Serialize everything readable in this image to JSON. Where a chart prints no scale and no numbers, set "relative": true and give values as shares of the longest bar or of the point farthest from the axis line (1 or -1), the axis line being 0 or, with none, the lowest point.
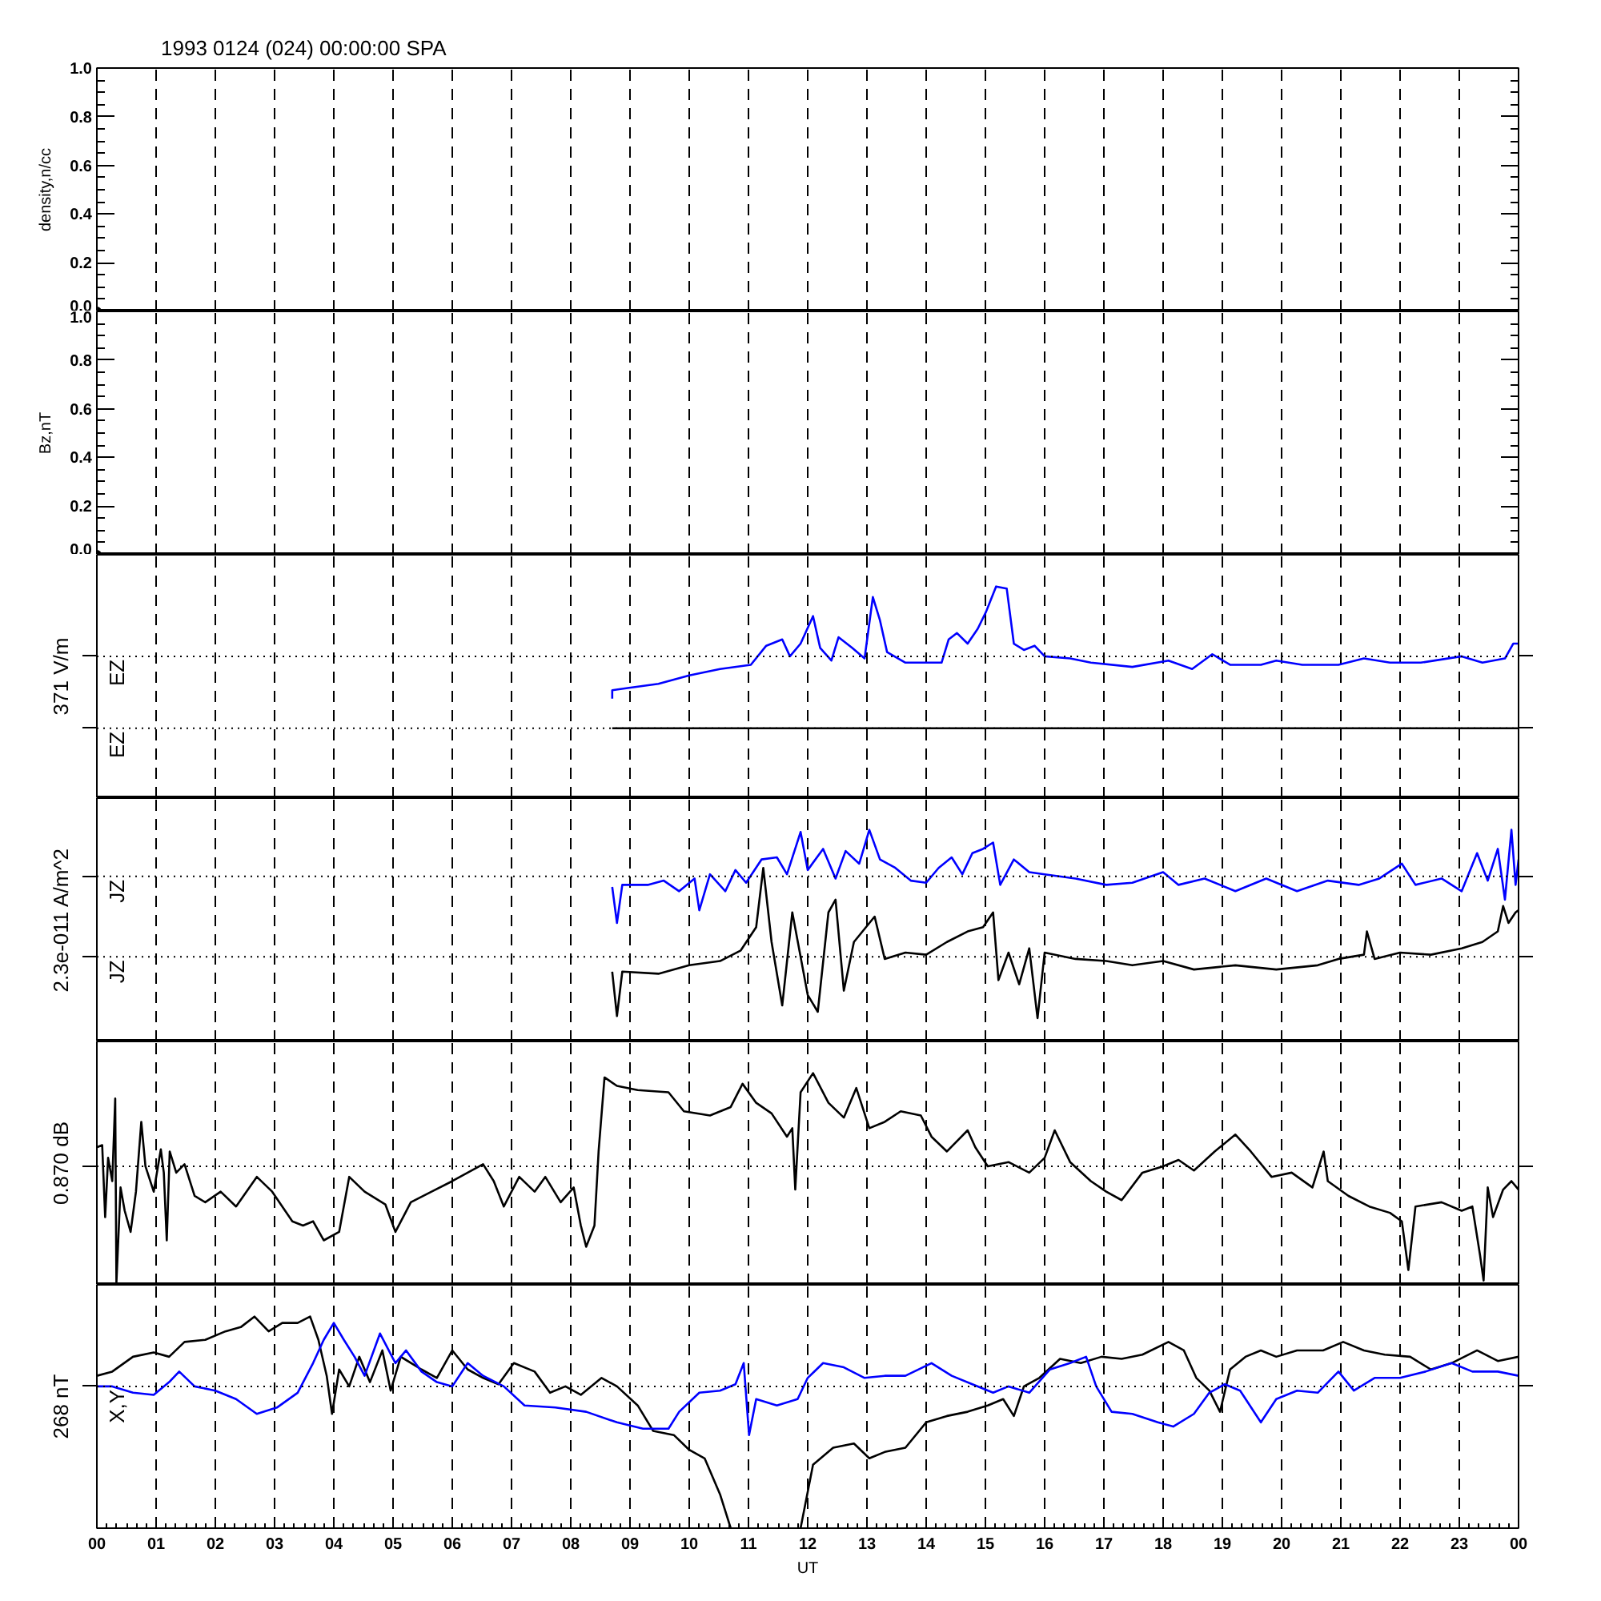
{
  "chart_data": [
    {
      "type": "scatter",
      "title": "1993 0124 (024) 00:00:00 SPA",
      "ylabel": "density,n/cc",
      "xlim": [
        0,
        24
      ],
      "xticks": [
        0,
        1,
        2,
        3,
        4,
        5,
        6,
        7,
        8,
        9,
        10,
        11,
        12,
        13,
        14,
        15,
        16,
        17,
        18,
        19,
        20,
        21,
        22,
        23,
        24
      ],
      "ylim": [
        0,
        1
      ],
      "yticks": [
        {
          "value": 0,
          "label": "0.0"
        },
        {
          "value": 0.2,
          "label": "0.2"
        },
        {
          "value": 0.4,
          "label": "0.4"
        },
        {
          "value": 0.6,
          "label": "0.6"
        },
        {
          "value": 0.8,
          "label": "0.8"
        },
        {
          "value": 1,
          "label": "1.0"
        }
      ],
      "grid": "x",
      "tick_labels": "y",
      "marker": "circle",
      "series": [
        {
          "color": "#000000",
          "x": [
            0
          ],
          "values": [
            0
          ]
        }
      ]
    },
    {
      "type": "scatter",
      "ylabel": "Bz,nT",
      "xlim": [
        0,
        24
      ],
      "xticks": [
        0,
        1,
        2,
        3,
        4,
        5,
        6,
        7,
        8,
        9,
        10,
        11,
        12,
        13,
        14,
        15,
        16,
        17,
        18,
        19,
        20,
        21,
        22,
        23,
        24
      ],
      "ylim": [
        0,
        1
      ],
      "yticks": [
        {
          "value": 0,
          "label": "0.0"
        },
        {
          "value": 0.2,
          "label": "0.2"
        },
        {
          "value": 0.4,
          "label": "0.4"
        },
        {
          "value": 0.6,
          "label": "0.6"
        },
        {
          "value": 0.8,
          "label": "0.8"
        },
        {
          "value": 1,
          "label": "1.0"
        }
      ],
      "grid": "x",
      "tick_labels": "y",
      "marker": "circle",
      "series": [
        {
          "color": "#000000",
          "x": [
            0
          ],
          "values": [
            0
          ]
        }
      ]
    },
    {
      "type": "line",
      "relative": true,
      "ylabel": "371 V/m",
      "xlim": [
        0,
        24
      ],
      "xticks": [
        0,
        1,
        2,
        3,
        4,
        5,
        6,
        7,
        8,
        9,
        10,
        11,
        12,
        13,
        14,
        15,
        16,
        17,
        18,
        19,
        20,
        21,
        22,
        23,
        24
      ],
      "grid": "x",
      "tick_labels": false,
      "ref_lines": [
        {
          "axis": "y",
          "value": 0.67,
          "label": "EZ",
          "line_style": "dotted"
        },
        {
          "axis": "y",
          "value": 0.33,
          "label": "EZ",
          "line_style": "dotted"
        }
      ],
      "series": [
        {
          "color": "#0000ff",
          "x": [
            8.7,
            8.7,
            8.96,
            9.48,
            10.0,
            10.52,
            11.04,
            11.3,
            11.57,
            11.7,
            11.88,
            12.09,
            12.21,
            12.4,
            12.52,
            12.75,
            12.96,
            13.1,
            13.22,
            13.34,
            13.65,
            14.26,
            14.38,
            14.52,
            14.7,
            14.87,
            15.01,
            15.18,
            15.36,
            15.48,
            15.65,
            15.83,
            16.0,
            16.43,
            16.78,
            17.48,
            18.09,
            18.49,
            18.83,
            19.13,
            19.65,
            19.91,
            20.35,
            20.96,
            21.39,
            21.83,
            22.35,
            23.04,
            23.39,
            23.77,
            23.91,
            24.0
          ],
          "values": [
            0.47,
            0.51,
            0.52,
            0.54,
            0.58,
            0.61,
            0.63,
            0.72,
            0.75,
            0.67,
            0.73,
            0.86,
            0.71,
            0.65,
            0.76,
            0.71,
            0.66,
            0.95,
            0.84,
            0.69,
            0.64,
            0.64,
            0.75,
            0.78,
            0.73,
            0.8,
            0.88,
            1.0,
            0.99,
            0.73,
            0.7,
            0.72,
            0.67,
            0.66,
            0.64,
            0.62,
            0.65,
            0.61,
            0.68,
            0.63,
            0.63,
            0.65,
            0.63,
            0.63,
            0.66,
            0.64,
            0.64,
            0.67,
            0.64,
            0.66,
            0.73,
            0.73
          ]
        },
        {
          "color": "#000000",
          "x": [
            8.7,
            24
          ],
          "values": [
            0.33,
            0.33
          ]
        }
      ]
    },
    {
      "type": "line",
      "relative": true,
      "ylabel": "2.3e-011 A/m^2",
      "xlim": [
        0,
        24
      ],
      "xticks": [
        0,
        1,
        2,
        3,
        4,
        5,
        6,
        7,
        8,
        9,
        10,
        11,
        12,
        13,
        14,
        15,
        16,
        17,
        18,
        19,
        20,
        21,
        22,
        23,
        24
      ],
      "grid": "x",
      "tick_labels": false,
      "ref_lines": [
        {
          "axis": "y",
          "value": 0.78,
          "label": "JZ",
          "line_style": "dotted"
        },
        {
          "axis": "y",
          "value": 0.4,
          "label": "JZ",
          "line_style": "dotted"
        }
      ],
      "series": [
        {
          "color": "#0000ff",
          "x": [
            8.7,
            8.78,
            8.87,
            9.3,
            9.57,
            9.83,
            10.09,
            10.17,
            10.35,
            10.61,
            10.78,
            10.96,
            11.22,
            11.48,
            11.65,
            11.88,
            12.0,
            12.26,
            12.47,
            12.64,
            12.87,
            13.04,
            13.22,
            13.48,
            13.74,
            14.0,
            14.21,
            14.43,
            14.61,
            14.78,
            14.96,
            15.13,
            15.25,
            15.48,
            15.74,
            16.0,
            16.52,
            17.04,
            17.48,
            18.0,
            18.26,
            18.7,
            19.22,
            19.74,
            20.26,
            20.78,
            21.3,
            21.65,
            22.03,
            22.26,
            22.7,
            23.04,
            23.3,
            23.48,
            23.65,
            23.77,
            23.88,
            23.95,
            24.0
          ],
          "values": [
            0.73,
            0.56,
            0.74,
            0.74,
            0.76,
            0.71,
            0.77,
            0.62,
            0.79,
            0.71,
            0.81,
            0.75,
            0.86,
            0.87,
            0.79,
            0.99,
            0.81,
            0.91,
            0.77,
            0.9,
            0.84,
            1.0,
            0.86,
            0.82,
            0.76,
            0.75,
            0.82,
            0.87,
            0.79,
            0.89,
            0.91,
            0.94,
            0.74,
            0.86,
            0.8,
            0.79,
            0.77,
            0.74,
            0.75,
            0.8,
            0.74,
            0.77,
            0.71,
            0.77,
            0.71,
            0.76,
            0.74,
            0.77,
            0.84,
            0.74,
            0.77,
            0.71,
            0.89,
            0.76,
            0.91,
            0.67,
            1.0,
            0.74,
            0.86
          ]
        },
        {
          "color": "#000000",
          "x": [
            8.7,
            8.78,
            8.87,
            9.48,
            10.0,
            10.52,
            10.87,
            11.13,
            11.25,
            11.39,
            11.57,
            11.74,
            12.0,
            12.17,
            12.35,
            12.47,
            12.61,
            12.78,
            13.13,
            13.3,
            13.65,
            14.0,
            14.35,
            14.7,
            14.96,
            15.13,
            15.22,
            15.39,
            15.57,
            15.74,
            15.88,
            16.0,
            16.52,
            17.04,
            17.48,
            18.0,
            18.52,
            19.22,
            19.91,
            20.61,
            20.96,
            21.39,
            21.44,
            21.57,
            22.0,
            22.52,
            23.04,
            23.39,
            23.65,
            23.74,
            23.83,
            23.95,
            24.0
          ],
          "values": [
            0.33,
            0.12,
            0.33,
            0.32,
            0.36,
            0.38,
            0.43,
            0.54,
            0.82,
            0.47,
            0.17,
            0.61,
            0.22,
            0.14,
            0.61,
            0.67,
            0.24,
            0.47,
            0.59,
            0.39,
            0.42,
            0.41,
            0.47,
            0.52,
            0.54,
            0.61,
            0.29,
            0.42,
            0.27,
            0.44,
            0.11,
            0.42,
            0.39,
            0.38,
            0.36,
            0.38,
            0.34,
            0.36,
            0.34,
            0.36,
            0.39,
            0.41,
            0.52,
            0.39,
            0.42,
            0.41,
            0.44,
            0.47,
            0.52,
            0.64,
            0.56,
            0.61,
            0.62
          ]
        }
      ]
    },
    {
      "type": "line",
      "relative": true,
      "ylabel": "0.870 dB",
      "xlim": [
        0,
        24
      ],
      "xticks": [
        0,
        1,
        2,
        3,
        4,
        5,
        6,
        7,
        8,
        9,
        10,
        11,
        12,
        13,
        14,
        15,
        16,
        17,
        18,
        19,
        20,
        21,
        22,
        23,
        24
      ],
      "grid": "x",
      "tick_labels": false,
      "ref_lines": [
        {
          "axis": "y",
          "value": 0.56,
          "line_style": "dotted"
        }
      ],
      "series": [
        {
          "color": "#000000",
          "x": [
            0,
            0.09,
            0.14,
            0.19,
            0.26,
            0.31,
            0.33,
            0.4,
            0.47,
            0.57,
            0.66,
            0.75,
            0.82,
            0.96,
            1.08,
            1.13,
            1.18,
            1.23,
            1.34,
            1.48,
            1.65,
            1.83,
            2.09,
            2.35,
            2.7,
            2.96,
            3.13,
            3.3,
            3.48,
            3.65,
            3.83,
            4.09,
            4.26,
            4.52,
            4.87,
            5.04,
            5.3,
            5.65,
            6.0,
            6.26,
            6.52,
            6.7,
            6.87,
            7.13,
            7.39,
            7.57,
            7.83,
            8.05,
            8.17,
            8.26,
            8.4,
            8.47,
            8.57,
            8.78,
            9.13,
            9.65,
            9.91,
            10.35,
            10.7,
            10.9,
            11.13,
            11.39,
            11.65,
            11.74,
            11.79,
            11.88,
            12.09,
            12.35,
            12.61,
            12.82,
            13.04,
            13.3,
            13.57,
            13.91,
            14.09,
            14.35,
            14.7,
            14.83,
            15.04,
            15.39,
            15.74,
            16.0,
            16.17,
            16.43,
            16.78,
            17.04,
            17.3,
            17.65,
            18.0,
            18.26,
            18.52,
            18.87,
            19.22,
            19.48,
            19.83,
            20.17,
            20.52,
            20.71,
            20.78,
            21.13,
            21.48,
            21.83,
            22.03,
            22.14,
            22.26,
            22.7,
            23.04,
            23.22,
            23.35,
            23.41,
            23.48,
            23.57,
            23.74,
            23.88,
            24.0
          ],
          "values": [
            0.65,
            0.66,
            0.32,
            0.6,
            0.49,
            0.88,
            0.01,
            0.46,
            0.35,
            0.25,
            0.44,
            0.77,
            0.56,
            0.44,
            0.64,
            0.53,
            0.21,
            0.63,
            0.53,
            0.57,
            0.42,
            0.39,
            0.44,
            0.37,
            0.51,
            0.44,
            0.37,
            0.3,
            0.28,
            0.3,
            0.21,
            0.25,
            0.51,
            0.44,
            0.38,
            0.25,
            0.39,
            0.44,
            0.49,
            0.53,
            0.57,
            0.49,
            0.37,
            0.51,
            0.44,
            0.51,
            0.39,
            0.46,
            0.28,
            0.18,
            0.28,
            0.63,
            0.98,
            0.94,
            0.92,
            0.91,
            0.82,
            0.8,
            0.84,
            0.95,
            0.86,
            0.81,
            0.7,
            0.74,
            0.45,
            0.91,
            1.0,
            0.86,
            0.79,
            0.93,
            0.74,
            0.77,
            0.82,
            0.8,
            0.7,
            0.63,
            0.73,
            0.65,
            0.56,
            0.58,
            0.53,
            0.6,
            0.73,
            0.58,
            0.49,
            0.44,
            0.4,
            0.53,
            0.56,
            0.59,
            0.54,
            0.63,
            0.71,
            0.63,
            0.51,
            0.53,
            0.46,
            0.63,
            0.49,
            0.42,
            0.37,
            0.34,
            0.3,
            0.07,
            0.37,
            0.39,
            0.35,
            0.37,
            0.14,
            0.02,
            0.46,
            0.32,
            0.45,
            0.49,
            0.45
          ]
        }
      ]
    },
    {
      "type": "line",
      "relative": true,
      "ylabel": "268 nT",
      "xlabel": "UT",
      "xlim": [
        0,
        24
      ],
      "xticks": [
        {
          "value": 0,
          "label": "00"
        },
        {
          "value": 1,
          "label": "01"
        },
        {
          "value": 2,
          "label": "02"
        },
        {
          "value": 3,
          "label": "03"
        },
        {
          "value": 4,
          "label": "04"
        },
        {
          "value": 5,
          "label": "05"
        },
        {
          "value": 6,
          "label": "06"
        },
        {
          "value": 7,
          "label": "07"
        },
        {
          "value": 8,
          "label": "08"
        },
        {
          "value": 9,
          "label": "09"
        },
        {
          "value": 10,
          "label": "10"
        },
        {
          "value": 11,
          "label": "11"
        },
        {
          "value": 12,
          "label": "12"
        },
        {
          "value": 13,
          "label": "13"
        },
        {
          "value": 14,
          "label": "14"
        },
        {
          "value": 15,
          "label": "15"
        },
        {
          "value": 16,
          "label": "16"
        },
        {
          "value": 17,
          "label": "17"
        },
        {
          "value": 18,
          "label": "18"
        },
        {
          "value": 19,
          "label": "19"
        },
        {
          "value": 20,
          "label": "20"
        },
        {
          "value": 21,
          "label": "21"
        },
        {
          "value": 22,
          "label": "22"
        },
        {
          "value": 23,
          "label": "23"
        },
        {
          "value": 24,
          "label": "00"
        }
      ],
      "grid": "x",
      "tick_labels": "x",
      "ref_lines": [
        {
          "axis": "y",
          "value": 0.67,
          "label": "X,Y",
          "line_style": "dotted"
        }
      ],
      "series": [
        {
          "color": "#000000",
          "x": [
            0,
            0.26,
            0.61,
            0.96,
            1.22,
            1.48,
            1.83,
            2.17,
            2.43,
            2.66,
            2.9,
            3.13,
            3.39,
            3.6,
            3.74,
            3.88,
            3.97,
            4.09,
            4.26,
            4.43,
            4.61,
            4.82,
            4.96,
            5.13,
            5.48,
            5.74,
            6.0,
            6.26,
            6.52,
            6.78,
            7.04,
            7.39,
            7.65,
            7.91,
            8.17,
            8.52,
            8.78,
            9.13,
            9.39,
            9.74,
            10.0,
            10.26,
            10.52,
            10.7,
            11.3,
            11.88,
            12.09,
            12.43,
            12.78,
            13.04,
            13.3,
            13.65,
            14.0,
            14.35,
            14.7,
            15.04,
            15.3,
            15.48,
            15.65,
            15.91,
            16.26,
            16.61,
            16.96,
            17.3,
            17.65,
            18.09,
            18.35,
            18.56,
            18.78,
            18.96,
            19.13,
            19.39,
            19.65,
            19.91,
            20.26,
            20.7,
            21.04,
            21.39,
            21.74,
            22.17,
            22.52,
            22.87,
            23.3,
            23.65,
            24.0
          ],
          "values": [
            0.72,
            0.74,
            0.81,
            0.83,
            0.81,
            0.88,
            0.89,
            0.93,
            0.95,
            1.0,
            0.93,
            0.97,
            0.97,
            1.0,
            0.89,
            0.72,
            0.54,
            0.75,
            0.67,
            0.81,
            0.69,
            0.84,
            0.65,
            0.81,
            0.75,
            0.71,
            0.84,
            0.75,
            0.71,
            0.68,
            0.78,
            0.74,
            0.64,
            0.67,
            0.63,
            0.71,
            0.67,
            0.58,
            0.46,
            0.44,
            0.37,
            0.33,
            0.16,
            0,
            null,
            0,
            0.3,
            0.38,
            0.4,
            0.33,
            0.36,
            0.38,
            0.5,
            0.53,
            0.55,
            0.58,
            0.61,
            0.53,
            0.67,
            0.71,
            0.8,
            0.78,
            0.81,
            0.8,
            0.82,
            0.88,
            0.84,
            0.71,
            0.65,
            0.55,
            0.75,
            0.81,
            0.84,
            0.81,
            0.84,
            0.84,
            0.88,
            0.84,
            0.82,
            0.81,
            0.75,
            0.78,
            0.84,
            0.79,
            0.81
          ]
        },
        {
          "color": "#0000ff",
          "x": [
            0,
            0.26,
            0.61,
            0.96,
            1.22,
            1.39,
            1.65,
            2.0,
            2.35,
            2.7,
            3.04,
            3.39,
            3.65,
            3.83,
            4.0,
            4.17,
            4.35,
            4.52,
            4.78,
            5.04,
            5.22,
            5.48,
            5.74,
            6.0,
            6.26,
            6.52,
            6.87,
            7.22,
            7.74,
            8.26,
            8.78,
            9.22,
            9.65,
            9.83,
            10.17,
            10.52,
            10.78,
            10.92,
            11.01,
            11.13,
            11.48,
            11.83,
            12.0,
            12.26,
            12.61,
            12.96,
            13.3,
            13.65,
            14.09,
            14.43,
            14.78,
            15.13,
            15.39,
            15.74,
            16.09,
            16.43,
            16.7,
            16.87,
            17.13,
            17.48,
            17.91,
            18.17,
            18.52,
            18.78,
            19.04,
            19.3,
            19.65,
            19.91,
            20.26,
            20.61,
            20.96,
            21.22,
            21.57,
            22.0,
            22.43,
            22.87,
            23.22,
            23.65,
            24.0
          ],
          "values": [
            0.67,
            0.67,
            0.64,
            0.63,
            0.69,
            0.74,
            0.67,
            0.65,
            0.61,
            0.54,
            0.57,
            0.64,
            0.78,
            0.89,
            0.97,
            0.89,
            0.81,
            0.72,
            0.92,
            0.78,
            0.84,
            0.74,
            0.69,
            0.67,
            0.78,
            0.72,
            0.67,
            0.58,
            0.57,
            0.55,
            0.5,
            0.47,
            0.47,
            0.55,
            0.64,
            0.65,
            0.68,
            0.78,
            0.44,
            0.61,
            0.58,
            0.61,
            0.71,
            0.78,
            0.76,
            0.71,
            0.72,
            0.72,
            0.78,
            0.72,
            0.68,
            0.64,
            0.67,
            0.64,
            0.75,
            0.78,
            0.81,
            0.67,
            0.55,
            0.54,
            0.5,
            0.48,
            0.54,
            0.64,
            0.68,
            0.65,
            0.5,
            0.61,
            0.65,
            0.64,
            0.74,
            0.65,
            0.71,
            0.71,
            0.74,
            0.78,
            0.74,
            0.74,
            0.72
          ]
        }
      ]
    }
  ]
}
